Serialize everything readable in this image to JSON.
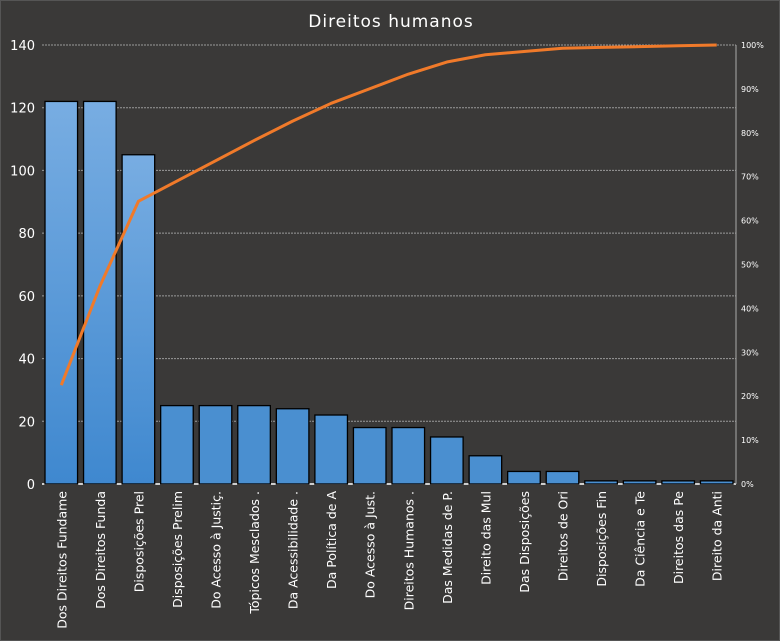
{
  "chart_data": {
    "type": "bar",
    "subtype": "pareto",
    "title": "Direitos humanos",
    "categories": [
      "Dos Direitos Fundame",
      "Dos Direitos Funda",
      "Disposições Prel",
      "Disposições Prelim",
      "Do Acesso à Justiç.",
      "Tópicos Mesclados  .",
      "Da Acessibilidade .",
      "Da Política de A",
      "Do Acesso à Just.",
      "Direitos Humanos  .",
      "Das Medidas de P.",
      "Direito das Mul",
      "Das Disposições",
      "Direitos de Ori",
      "Disposições Fin",
      "Da Ciência e Te",
      "Direitos das Pe",
      "Direito da Anti"
    ],
    "values": [
      122,
      122,
      105,
      25,
      25,
      25,
      24,
      22,
      18,
      18,
      15,
      9,
      4,
      4,
      1,
      1,
      1,
      1
    ],
    "cumulative_percent_series": "computed from values",
    "ylim": [
      0,
      140
    ],
    "y_ticks": [
      "0",
      "20",
      "40",
      "60",
      "80",
      "100",
      "120",
      "140"
    ],
    "y2lim": [
      0,
      100
    ],
    "y2_ticks": [
      "0%",
      "10%",
      "20%",
      "30%",
      "40%",
      "50%",
      "60%",
      "70%",
      "80%",
      "90%",
      "100%"
    ],
    "grid": true,
    "colors": {
      "bar": "#4a8fd0",
      "bar_top": "#7aaee0",
      "line": "#f07a2a",
      "background": "#3a3938",
      "text": "#ffffff"
    }
  }
}
